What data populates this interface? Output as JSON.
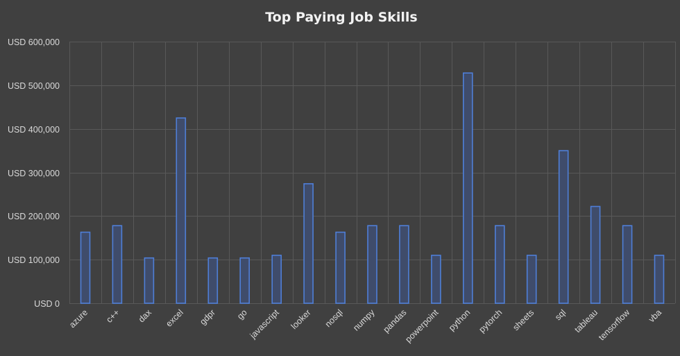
{
  "chart_data": {
    "type": "bar",
    "title": "Top Paying Job Skills",
    "xlabel": "",
    "ylabel": "",
    "categories": [
      "azure",
      "c++",
      "dax",
      "excel",
      "gdpr",
      "go",
      "javascript",
      "looker",
      "nosql",
      "numpy",
      "pandas",
      "powerpoint",
      "python",
      "pytorch",
      "sheets",
      "sql",
      "tableau",
      "tensorflow",
      "vba"
    ],
    "values": [
      163000,
      178000,
      104000,
      425000,
      104000,
      104000,
      110000,
      274000,
      163000,
      178000,
      178000,
      110000,
      528000,
      178000,
      110000,
      350000,
      222000,
      178000,
      110000
    ],
    "ylim": [
      0,
      600000
    ],
    "yticks": [
      0,
      100000,
      200000,
      300000,
      400000,
      500000,
      600000
    ],
    "ytick_labels": [
      "USD 0",
      "USD 100,000",
      "USD 200,000",
      "USD 300,000",
      "USD 400,000",
      "USD 500,000",
      "USD 600,000"
    ],
    "grid": true,
    "legend": "none",
    "colors": {
      "background": "#404040",
      "bar_fill": "#3f4c6b",
      "bar_edge": "#4f7fd8",
      "grid": "#595959",
      "text": "#d9d9d9"
    }
  }
}
